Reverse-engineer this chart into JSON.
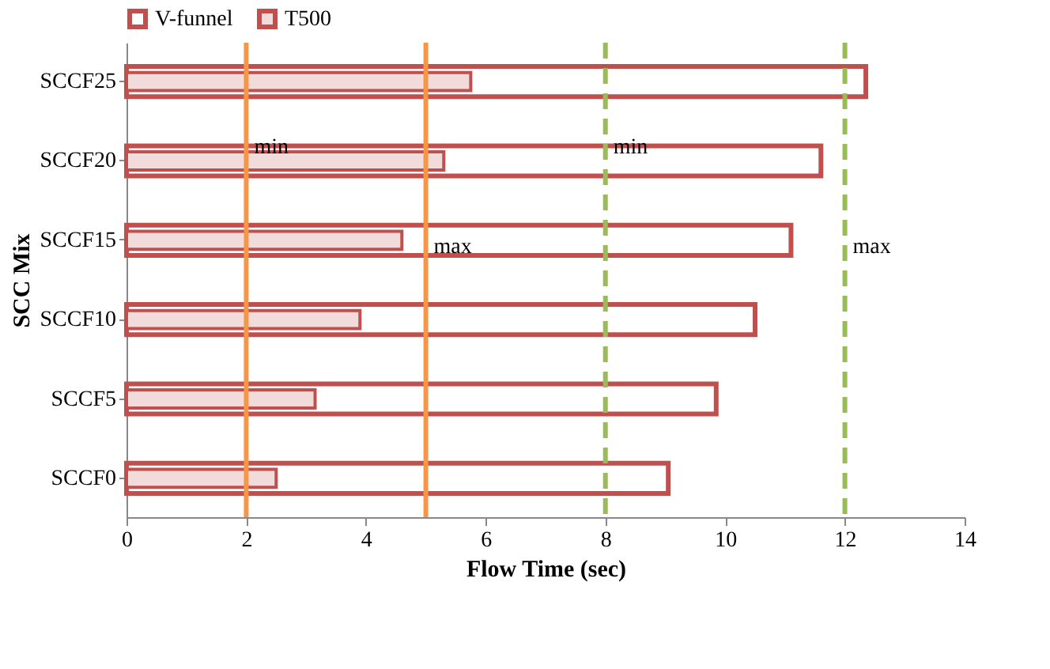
{
  "chart_data": {
    "type": "bar",
    "orientation": "horizontal",
    "xlabel": "Flow Time (sec)",
    "ylabel": "SCC Mix",
    "categories": [
      "SCCF25",
      "SCCF20",
      "SCCF15",
      "SCCF10",
      "SCCF5",
      "SCCF0"
    ],
    "series": [
      {
        "name": "V-funnel",
        "color": "#c0504d",
        "values": [
          12.35,
          11.6,
          11.1,
          10.5,
          9.85,
          9.05
        ]
      },
      {
        "name": "T500",
        "color": "#f2dcdb",
        "values": [
          5.75,
          5.3,
          4.6,
          3.9,
          3.15,
          2.5
        ]
      }
    ],
    "xlim": [
      0,
      14
    ],
    "xticks": [
      0,
      2,
      4,
      6,
      8,
      10,
      12,
      14
    ],
    "grid": false,
    "legend": "top",
    "ref_lines": [
      {
        "axis": "x",
        "value": 2,
        "label": "min",
        "color": "#f79646",
        "line_style": "solid"
      },
      {
        "axis": "x",
        "value": 5,
        "label": "max",
        "color": "#f79646",
        "line_style": "solid"
      },
      {
        "axis": "x",
        "value": 8,
        "label": "min",
        "color": "#9bbb59",
        "line_style": "dashed"
      },
      {
        "axis": "x",
        "value": 12,
        "label": "max",
        "color": "#9bbb59",
        "line_style": "dashed"
      }
    ]
  }
}
